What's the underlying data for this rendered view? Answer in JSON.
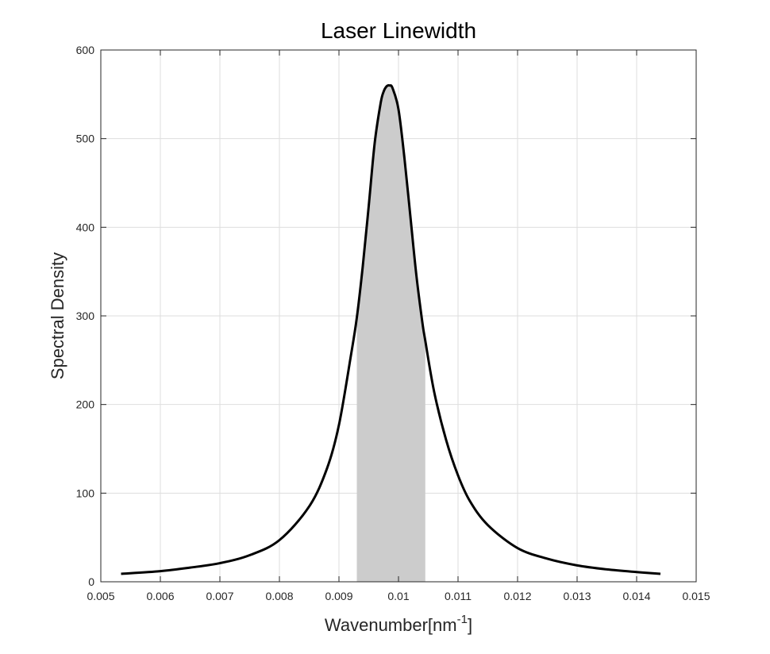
{
  "chart_data": {
    "type": "line",
    "title": "Laser Linewidth",
    "xlabel_base": "Wavenumber[nm",
    "xlabel_sup": "-1",
    "xlabel_close": "]",
    "ylabel": "Spectral Density",
    "xlim": [
      0.005,
      0.015
    ],
    "ylim": [
      0,
      600
    ],
    "x_ticks": [
      0.005,
      0.006,
      0.007,
      0.008,
      0.009,
      0.01,
      0.011,
      0.012,
      0.013,
      0.014,
      0.015
    ],
    "x_tick_labels": [
      "0.005",
      "0.006",
      "0.007",
      "0.008",
      "0.009",
      "0.01",
      "0.011",
      "0.012",
      "0.013",
      "0.014",
      "0.015"
    ],
    "y_ticks": [
      0,
      100,
      200,
      300,
      400,
      500,
      600
    ],
    "y_tick_labels": [
      "0",
      "100",
      "200",
      "300",
      "400",
      "500",
      "600"
    ],
    "grid": true,
    "series": [
      {
        "color": "#000000",
        "x": [
          0.00534,
          0.006,
          0.0065,
          0.007,
          0.0075,
          0.008,
          0.0085,
          0.0088,
          0.009,
          0.0092,
          0.0093,
          0.0094,
          0.0095,
          0.0096,
          0.0097,
          0.00975,
          0.0098,
          0.00985,
          0.0099,
          0.01,
          0.0101,
          0.0102,
          0.0103,
          0.0104,
          0.01045,
          0.0106,
          0.0108,
          0.011,
          0.0112,
          0.0115,
          0.012,
          0.0125,
          0.013,
          0.0135,
          0.014,
          0.0144
        ],
        "y": [
          9,
          12,
          16,
          21,
          30,
          47,
          85,
          128,
          177,
          255,
          298,
          356,
          424,
          495,
          540,
          553,
          559,
          560,
          557,
          533,
          478,
          412,
          346,
          293,
          272,
          214,
          160,
          120,
          91,
          64,
          38,
          26,
          18.5,
          14,
          11,
          9
        ]
      }
    ],
    "shaded_region": {
      "x_start": 0.0093,
      "x_end": 0.01045,
      "color": "#cccccc"
    }
  }
}
